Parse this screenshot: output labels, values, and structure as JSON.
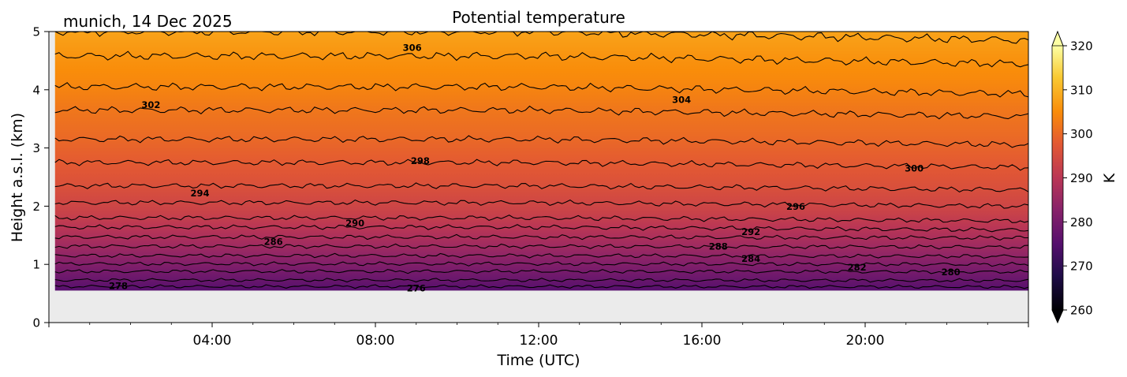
{
  "chart_data": {
    "type": "heatmap",
    "title": "Potential temperature",
    "location_date": "munich, 14 Dec 2025",
    "xlabel": "Time (UTC)",
    "ylabel": "Height a.s.l. (km)",
    "x_ticks": [
      "04:00",
      "08:00",
      "12:00",
      "16:00",
      "20:00"
    ],
    "x_tick_hours": [
      4,
      8,
      12,
      16,
      20
    ],
    "xlim_hours": [
      0,
      24
    ],
    "y_ticks": [
      "0",
      "1",
      "2",
      "3",
      "4",
      "5"
    ],
    "ylim": [
      0,
      5
    ],
    "data_height_range_km": [
      0.55,
      5.0
    ],
    "data_time_range_hours": [
      0.15,
      24.0
    ],
    "background_color": "#ebebeb",
    "colormap": "inferno",
    "colorbar": {
      "label": "K",
      "range": [
        260,
        320
      ],
      "ticks": [
        "260",
        "270",
        "280",
        "290",
        "300",
        "310",
        "320"
      ],
      "extend": "both"
    },
    "contour_levels": [
      {
        "value": 276,
        "height_km": 0.62
      },
      {
        "value": 278,
        "height_km": 0.73
      },
      {
        "value": 280,
        "height_km": 0.88
      },
      {
        "value": 282,
        "height_km": 1.01
      },
      {
        "value": 284,
        "height_km": 1.15
      },
      {
        "value": 286,
        "height_km": 1.31
      },
      {
        "value": 288,
        "height_km": 1.47
      },
      {
        "value": 290,
        "height_km": 1.64
      },
      {
        "value": 292,
        "height_km": 1.8
      },
      {
        "value": 294,
        "height_km": 2.06
      },
      {
        "value": 296,
        "height_km": 2.35
      },
      {
        "value": 298,
        "height_km": 2.75
      },
      {
        "value": 300,
        "height_km": 3.15
      },
      {
        "value": 302,
        "height_km": 3.65
      },
      {
        "value": 304,
        "height_km": 4.05
      },
      {
        "value": 306,
        "height_km": 4.58
      },
      {
        "value": 308,
        "height_km": 5.0
      }
    ],
    "contour_labels": [
      {
        "text": "278",
        "hour": 1.7,
        "height_km": 0.63
      },
      {
        "text": "276",
        "hour": 9.0,
        "height_km": 0.59
      },
      {
        "text": "280",
        "hour": 22.1,
        "height_km": 0.87
      },
      {
        "text": "282",
        "hour": 19.8,
        "height_km": 0.95
      },
      {
        "text": "284",
        "hour": 17.2,
        "height_km": 1.1
      },
      {
        "text": "286",
        "hour": 5.5,
        "height_km": 1.39
      },
      {
        "text": "288",
        "hour": 16.4,
        "height_km": 1.31
      },
      {
        "text": "290",
        "hour": 7.5,
        "height_km": 1.71
      },
      {
        "text": "292",
        "hour": 17.2,
        "height_km": 1.56
      },
      {
        "text": "294",
        "hour": 3.7,
        "height_km": 2.22
      },
      {
        "text": "296",
        "hour": 18.3,
        "height_km": 1.99
      },
      {
        "text": "298",
        "hour": 9.1,
        "height_km": 2.78
      },
      {
        "text": "300",
        "hour": 21.2,
        "height_km": 2.65
      },
      {
        "text": "302",
        "hour": 2.5,
        "height_km": 3.74
      },
      {
        "text": "304",
        "hour": 15.5,
        "height_km": 3.83
      },
      {
        "text": "306",
        "hour": 8.9,
        "height_km": 4.72
      }
    ]
  }
}
